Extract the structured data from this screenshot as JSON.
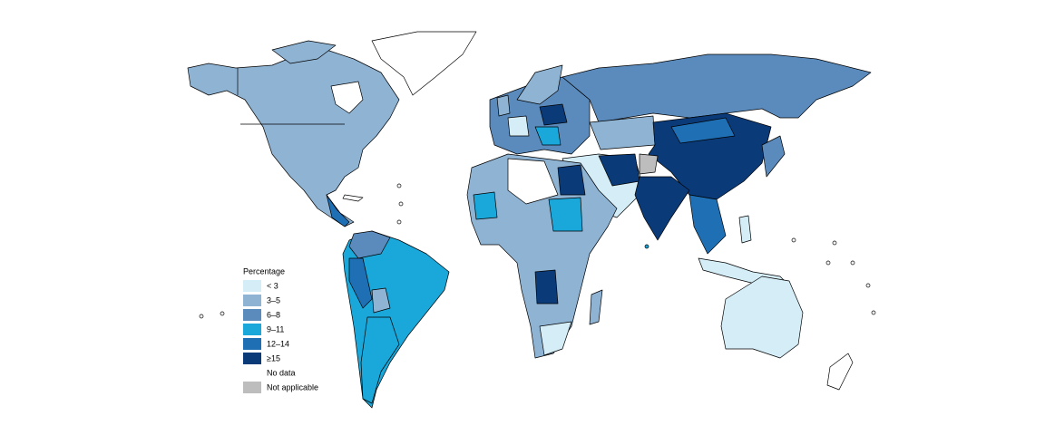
{
  "legend": {
    "title": "Percentage",
    "items": [
      {
        "label": "< 3",
        "color": "#d4edf7"
      },
      {
        "label": "3–5",
        "color": "#8fb3d3"
      },
      {
        "label": "6–8",
        "color": "#5b8bbd"
      },
      {
        "label": "9–11",
        "color": "#1aa7d9"
      },
      {
        "label": "12–14",
        "color": "#1f6fb5"
      },
      {
        "label": "≥15",
        "color": "#0a3a78"
      },
      {
        "label": "No data",
        "color": "#ffffff"
      },
      {
        "label": "Not applicable",
        "color": "#bdbdbd"
      }
    ]
  }
}
